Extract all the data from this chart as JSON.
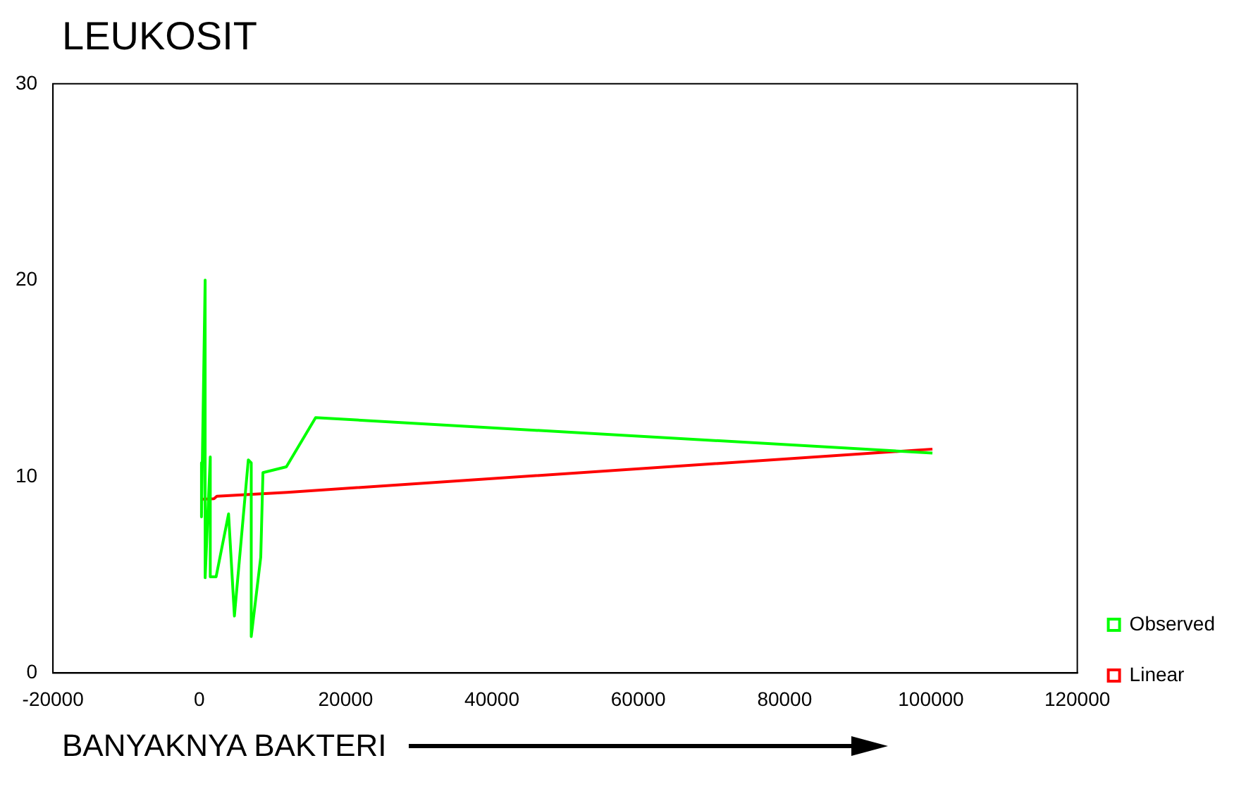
{
  "chart_data": {
    "type": "line",
    "title": "LEUKOSIT",
    "xlabel": "BANYAKNYA BAKTERI",
    "xlim": [
      -20000,
      120000
    ],
    "xticks": [
      -20000,
      0,
      20000,
      40000,
      60000,
      80000,
      100000,
      120000
    ],
    "ylim": [
      0,
      30
    ],
    "yticks": [
      0,
      10,
      20,
      30
    ],
    "grid": false,
    "legend": "right",
    "series": [
      {
        "name": "Observed",
        "color": "#00ff00",
        "x": [
          300,
          300,
          800,
          800,
          1500,
          1500,
          2300,
          4000,
          4800,
          6700,
          7100,
          7100,
          8400,
          8700,
          11900,
          15900,
          100200
        ],
        "values": [
          10.7,
          7.95,
          20,
          4.85,
          11,
          4.9,
          4.9,
          8.1,
          2.9,
          10.85,
          10.7,
          1.85,
          5.9,
          10.2,
          10.5,
          13,
          11.2
        ]
      },
      {
        "name": "Linear",
        "color": "#ff0000",
        "x": [
          300,
          2000,
          2400,
          12000,
          100200
        ],
        "values": [
          8.85,
          8.87,
          9.0,
          9.2,
          11.4
        ]
      }
    ]
  }
}
